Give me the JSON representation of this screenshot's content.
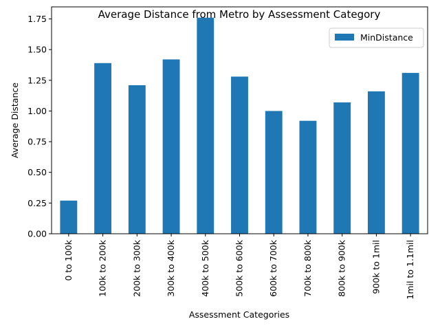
{
  "chart_data": {
    "type": "bar",
    "title": "Average Distance from Metro by Assessment Category",
    "xlabel": "Assessment Categories",
    "ylabel": "Average Distance",
    "categories": [
      "0 to 100k",
      "100k to 200k",
      "200k to 300k",
      "300k to 400k",
      "400k to 500k",
      "500k to 600k",
      "600k to 700k",
      "700k to 800k",
      "800k to 900k",
      "900k to 1mil",
      "1mil to 1.1mil"
    ],
    "series": [
      {
        "name": "MinDistance",
        "values": [
          0.27,
          1.39,
          1.21,
          1.42,
          1.76,
          1.28,
          1.0,
          0.92,
          1.07,
          1.16,
          1.31
        ],
        "color": "#1f77b4"
      }
    ],
    "ylim": [
      0,
      1.848
    ],
    "yticks": [
      "0.00",
      "0.25",
      "0.50",
      "0.75",
      "1.00",
      "1.25",
      "1.50",
      "1.75"
    ],
    "grid": false,
    "legend": "top-right"
  }
}
